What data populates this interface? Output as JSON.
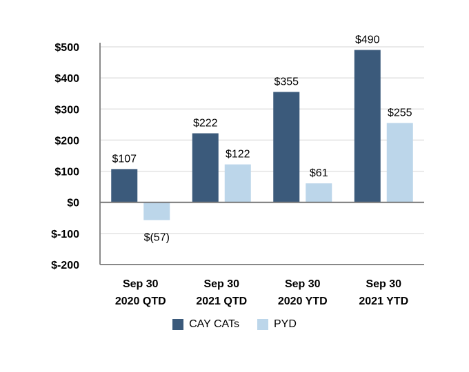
{
  "chart_data": {
    "type": "bar",
    "title": "",
    "xlabel": "",
    "ylabel": "",
    "ylim": [
      -200,
      500
    ],
    "yticks": [
      500,
      400,
      300,
      200,
      100,
      0,
      -100,
      -200
    ],
    "ytick_labels": [
      "$500",
      "$400",
      "$300",
      "$200",
      "$100",
      "$0",
      "$-100",
      "$-200"
    ],
    "categories": [
      [
        "Sep 30",
        "2020 QTD"
      ],
      [
        "Sep 30",
        "2021 QTD"
      ],
      [
        "Sep 30",
        "2020 YTD"
      ],
      [
        "Sep 30",
        "2021 YTD"
      ]
    ],
    "series": [
      {
        "name": "CAY CATs",
        "color": "#3b5a7b",
        "values": [
          107,
          222,
          355,
          490
        ],
        "labels": [
          "$107",
          "$222",
          "$355",
          "$490"
        ]
      },
      {
        "name": "PYD",
        "color": "#bcd6ea",
        "values": [
          -57,
          122,
          61,
          255
        ],
        "labels": [
          "$(57)",
          "$122",
          "$61",
          "$255"
        ]
      }
    ],
    "grid": true,
    "legend_position": "bottom"
  }
}
